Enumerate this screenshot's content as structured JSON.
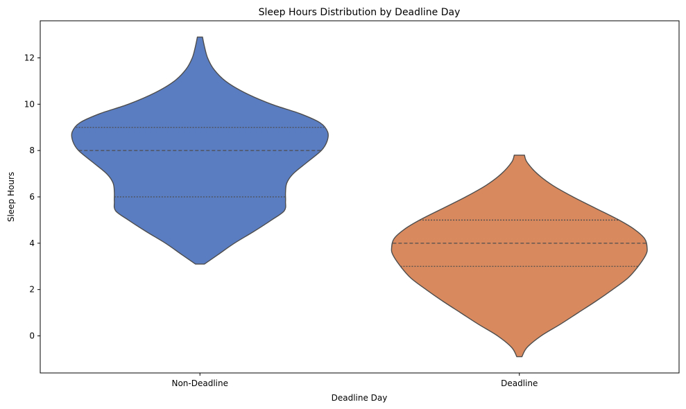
{
  "chart_data": {
    "type": "violin",
    "title": "Sleep Hours Distribution by Deadline Day",
    "xlabel": "Deadline Day",
    "ylabel": "Sleep Hours",
    "categories": [
      "Non-Deadline",
      "Deadline"
    ],
    "ylim": [
      -1.6,
      13.6
    ],
    "yticks": [
      0,
      2,
      4,
      6,
      8,
      10,
      12
    ],
    "grid": false,
    "legend": "none",
    "series": [
      {
        "category": "Non-Deadline",
        "color": "#5A7CC1",
        "min": 3.1,
        "max": 12.9,
        "q1": 6,
        "median": 8,
        "q3": 9,
        "density": [
          {
            "y": 3.1,
            "w": 0.035
          },
          {
            "y": 3.5,
            "w": 0.14
          },
          {
            "y": 4.0,
            "w": 0.27
          },
          {
            "y": 4.5,
            "w": 0.42
          },
          {
            "y": 5.0,
            "w": 0.56
          },
          {
            "y": 5.4,
            "w": 0.66
          },
          {
            "y": 5.8,
            "w": 0.67
          },
          {
            "y": 6.2,
            "w": 0.67
          },
          {
            "y": 6.6,
            "w": 0.68
          },
          {
            "y": 7.0,
            "w": 0.73
          },
          {
            "y": 7.5,
            "w": 0.84
          },
          {
            "y": 8.0,
            "w": 0.95
          },
          {
            "y": 8.4,
            "w": 0.995
          },
          {
            "y": 8.8,
            "w": 1.0
          },
          {
            "y": 9.2,
            "w": 0.94
          },
          {
            "y": 9.6,
            "w": 0.78
          },
          {
            "y": 10.0,
            "w": 0.56
          },
          {
            "y": 10.5,
            "w": 0.35
          },
          {
            "y": 11.0,
            "w": 0.2
          },
          {
            "y": 11.5,
            "w": 0.11
          },
          {
            "y": 12.0,
            "w": 0.06
          },
          {
            "y": 12.5,
            "w": 0.035
          },
          {
            "y": 12.9,
            "w": 0.02
          }
        ]
      },
      {
        "category": "Deadline",
        "color": "#D9895E",
        "min": -0.9,
        "max": 7.8,
        "q1": 3,
        "median": 4,
        "q3": 5,
        "density": [
          {
            "y": -0.9,
            "w": 0.02
          },
          {
            "y": -0.5,
            "w": 0.06
          },
          {
            "y": 0.0,
            "w": 0.17
          },
          {
            "y": 0.5,
            "w": 0.32
          },
          {
            "y": 1.0,
            "w": 0.46
          },
          {
            "y": 1.5,
            "w": 0.6
          },
          {
            "y": 2.0,
            "w": 0.73
          },
          {
            "y": 2.5,
            "w": 0.85
          },
          {
            "y": 3.0,
            "w": 0.93
          },
          {
            "y": 3.5,
            "w": 0.99
          },
          {
            "y": 3.8,
            "w": 1.0
          },
          {
            "y": 4.2,
            "w": 0.98
          },
          {
            "y": 4.6,
            "w": 0.9
          },
          {
            "y": 5.0,
            "w": 0.78
          },
          {
            "y": 5.5,
            "w": 0.6
          },
          {
            "y": 6.0,
            "w": 0.42
          },
          {
            "y": 6.5,
            "w": 0.26
          },
          {
            "y": 7.0,
            "w": 0.14
          },
          {
            "y": 7.5,
            "w": 0.06
          },
          {
            "y": 7.8,
            "w": 0.04
          }
        ]
      }
    ]
  }
}
